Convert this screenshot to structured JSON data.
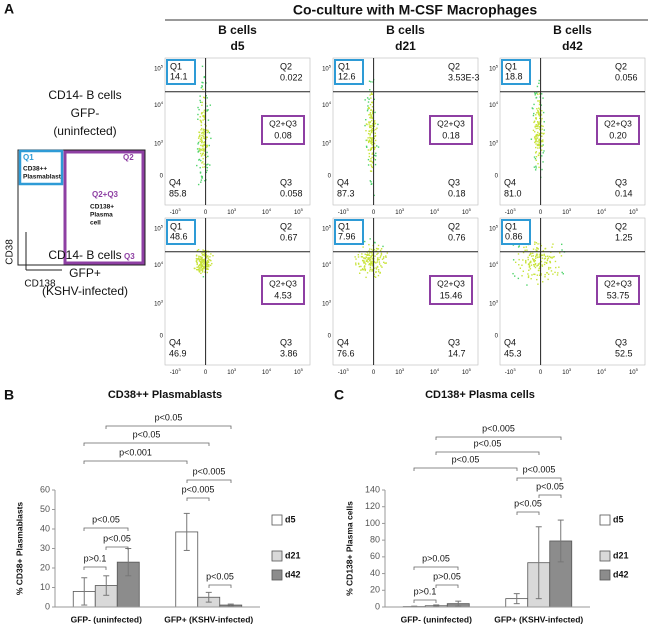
{
  "panel_a": {
    "label": "A",
    "title": "Co-culture with M-CSF Macrophages",
    "columns": [
      {
        "line1": "B cells",
        "line2": "d5"
      },
      {
        "line1": "B cells",
        "line2": "d21"
      },
      {
        "line1": "B cells",
        "line2": "d42"
      }
    ],
    "rows": [
      {
        "lines": [
          "CD14- B cells",
          "GFP-",
          "(uninfected)"
        ]
      },
      {
        "lines": [
          "CD14- B cells",
          "GFP+",
          "(KSHV-infected)"
        ]
      }
    ],
    "quadrant_names": {
      "q1": "Q1",
      "q2": "Q2",
      "q3": "Q3",
      "q4": "Q4",
      "q23": "Q2+Q3"
    },
    "plots": [
      [
        {
          "q1": "14.1",
          "q2": "0.022",
          "q23": "0.08",
          "q3": "0.058",
          "q4": "85.8"
        },
        {
          "q1": "12.6",
          "q2": "3.53E-3",
          "q23": "0.18",
          "q3": "0.18",
          "q4": "87.3"
        },
        {
          "q1": "18.8",
          "q2": "0.056",
          "q23": "0.20",
          "q3": "0.14",
          "q4": "81.0"
        }
      ],
      [
        {
          "q1": "48.6",
          "q2": "0.67",
          "q23": "4.53",
          "q3": "3.86",
          "q4": "46.9"
        },
        {
          "q1": "7.96",
          "q2": "0.76",
          "q23": "15.46",
          "q3": "14.7",
          "q4": "76.6"
        },
        {
          "q1": "0.86",
          "q2": "1.25",
          "q23": "53.75",
          "q3": "52.5",
          "q4": "45.3"
        }
      ]
    ],
    "y_tick_labels": [
      {
        "base": "10",
        "exp": "5"
      },
      {
        "base": "10",
        "exp": "4"
      },
      {
        "base": "10",
        "exp": "3"
      },
      {
        "base": "0"
      }
    ],
    "x_tick_labels": [
      {
        "base": "-10",
        "exp": "3"
      },
      {
        "base": "0"
      },
      {
        "base": "10",
        "exp": "3"
      },
      {
        "base": "10",
        "exp": "4"
      },
      {
        "base": "10",
        "exp": "5"
      }
    ],
    "legend": {
      "q1": "Q1",
      "q1_lines": [
        "CD38++",
        "Plasmablast"
      ],
      "q2": "Q2",
      "q23": "Q2+Q3",
      "q23_lines": [
        "CD138+",
        "Plasma",
        "cell"
      ],
      "q3": "Q3",
      "y_axis": "CD38",
      "x_axis": "CD138"
    }
  },
  "chart_data": [
    {
      "type": "bar",
      "label": "B",
      "title": "CD38++ Plasmablasts",
      "ylabel": "% CD38+ Plasmablasts",
      "categories": [
        "GFP- (uninfected)",
        "GFP+ (KSHV-infected)"
      ],
      "series": [
        {
          "name": "d5",
          "color": "#ffffff",
          "values": [
            8,
            38.5
          ],
          "errors": [
            7,
            9.5
          ]
        },
        {
          "name": "d21",
          "color": "#d9d9d9",
          "values": [
            11,
            5
          ],
          "errors": [
            5,
            2.5
          ]
        },
        {
          "name": "d42",
          "color": "#8c8c8c",
          "values": [
            23,
            1
          ],
          "errors": [
            7,
            0.5
          ]
        }
      ],
      "ylim": [
        0,
        60
      ],
      "yticks": [
        0,
        10,
        20,
        30,
        40,
        50,
        60
      ],
      "annotations": [
        "p<0.05",
        "p<0.05",
        "p<0.001",
        "p<0.005",
        "p<0.005",
        "p<0.05",
        "p<0.05",
        "p>0.1",
        "p<0.05"
      ]
    },
    {
      "type": "bar",
      "label": "C",
      "title": "CD138+ Plasma cells",
      "ylabel": "% CD138+ Plasma cells",
      "categories": [
        "GFP- (uninfected)",
        "GFP+ (KSHV-infected)"
      ],
      "series": [
        {
          "name": "d5",
          "color": "#ffffff",
          "values": [
            0.5,
            10
          ],
          "errors": [
            0.5,
            6
          ]
        },
        {
          "name": "d21",
          "color": "#d9d9d9",
          "values": [
            1.5,
            53
          ],
          "errors": [
            1,
            43
          ]
        },
        {
          "name": "d42",
          "color": "#8c8c8c",
          "values": [
            4,
            79
          ],
          "errors": [
            3,
            25
          ]
        }
      ],
      "ylim": [
        0,
        140
      ],
      "yticks": [
        0,
        20,
        40,
        60,
        80,
        100,
        120,
        140
      ],
      "annotations": [
        "p<0.005",
        "p<0.05",
        "p<0.05",
        "p<0.005",
        "p<0.05",
        "p<0.05",
        "p>0.05",
        "p>0.05",
        "p>0.1"
      ]
    }
  ]
}
